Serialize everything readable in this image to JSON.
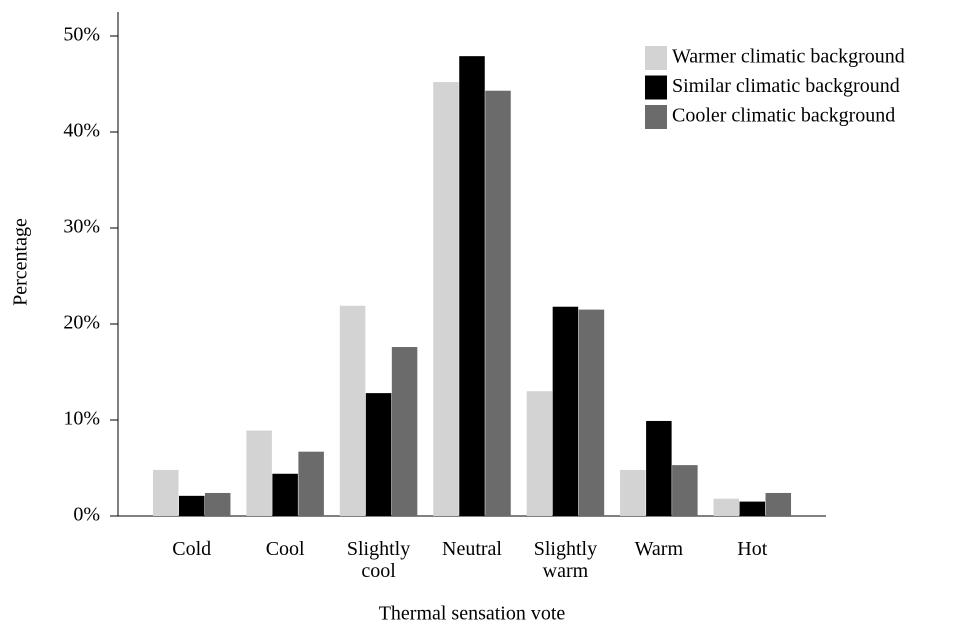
{
  "chart_data": {
    "type": "bar",
    "x_label": "Thermal sensation vote",
    "y_label": "Percentage",
    "categories": [
      "Cold",
      "Cool",
      "Slightly cool",
      "Neutral",
      "Slightly warm",
      "Warm",
      "Hot"
    ],
    "series": [
      {
        "name": "Warmer climatic background",
        "color": "#d3d3d3",
        "values": [
          4.8,
          8.9,
          21.9,
          45.2,
          13.0,
          4.8,
          1.8
        ]
      },
      {
        "name": "Similar climatic background",
        "color": "#000000",
        "values": [
          2.1,
          4.4,
          12.8,
          47.9,
          21.8,
          9.9,
          1.5
        ]
      },
      {
        "name": "Cooler climatic background",
        "color": "#6b6b6b",
        "values": [
          2.4,
          6.7,
          17.6,
          44.3,
          21.5,
          5.3,
          2.4
        ]
      }
    ],
    "ylim": [
      0,
      52.5
    ],
    "yticks": [
      {
        "value": 0,
        "label": "0%"
      },
      {
        "value": 10,
        "label": "10%"
      },
      {
        "value": 20,
        "label": "20%"
      },
      {
        "value": 30,
        "label": "30%"
      },
      {
        "value": 40,
        "label": "40%"
      },
      {
        "value": 50,
        "label": "50%"
      }
    ],
    "grid": false,
    "legend": "top-right"
  }
}
